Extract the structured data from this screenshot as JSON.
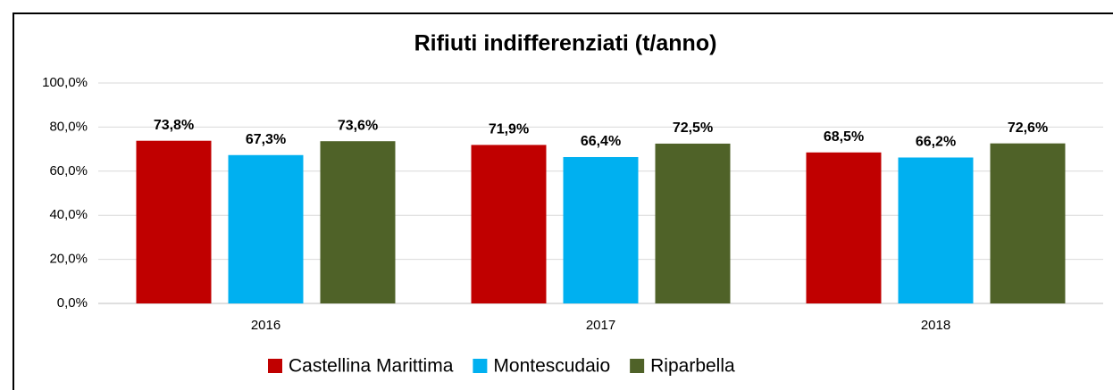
{
  "chart_data": {
    "type": "bar",
    "title": "Rifiuti indifferenziati (t/anno)",
    "categories": [
      "2016",
      "2017",
      "2018"
    ],
    "series": [
      {
        "name": "Castellina Marittima",
        "color": "#c00000",
        "values": [
          73.8,
          71.9,
          68.5
        ],
        "value_labels": [
          "73,8%",
          "71,9%",
          "68,5%"
        ]
      },
      {
        "name": "Montescudaio",
        "color": "#00b0f0",
        "values": [
          67.3,
          66.4,
          66.2
        ],
        "value_labels": [
          "67,3%",
          "66,4%",
          "66,2%"
        ]
      },
      {
        "name": "Riparbella",
        "color": "#4f6228",
        "values": [
          73.6,
          72.5,
          72.6
        ],
        "value_labels": [
          "73,6%",
          "72,5%",
          "72,6%"
        ]
      }
    ],
    "ylim": [
      0,
      100
    ],
    "yticks": [
      {
        "value": 0,
        "label": "0,0%"
      },
      {
        "value": 20,
        "label": "20,0%"
      },
      {
        "value": 40,
        "label": "40,0%"
      },
      {
        "value": 60,
        "label": "60,0%"
      },
      {
        "value": 80,
        "label": "80,0%"
      },
      {
        "value": 100,
        "label": "100,0%"
      }
    ],
    "grid": true,
    "legend": "bottom"
  }
}
